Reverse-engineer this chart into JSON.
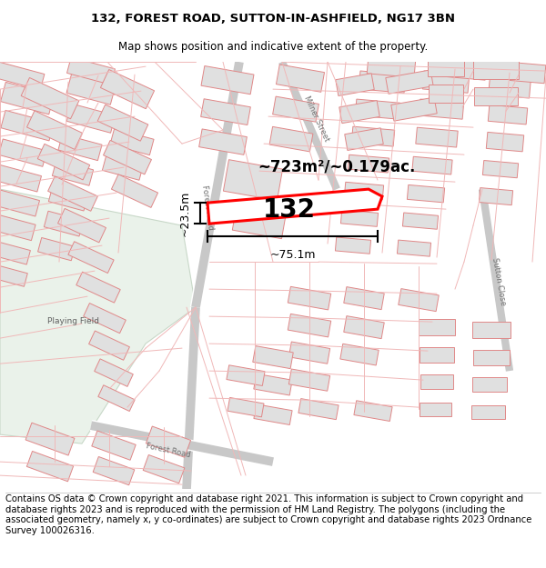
{
  "title": "132, FOREST ROAD, SUTTON-IN-ASHFIELD, NG17 3BN",
  "subtitle": "Map shows position and indicative extent of the property.",
  "area_text": "~723m²/~0.179ac.",
  "width_text": "~75.1m",
  "height_text": "~23.5m",
  "label_132": "132",
  "footer_text": "Contains OS data © Crown copyright and database right 2021. This information is subject to Crown copyright and database rights 2023 and is reproduced with the permission of HM Land Registry. The polygons (including the associated geometry, namely x, y co-ordinates) are subject to Crown copyright and database rights 2023 Ordnance Survey 100026316.",
  "map_bg": "#ffffff",
  "road_color": "#f0b8b8",
  "road_dark": "#b0b0b0",
  "highlight_color": "#ff0000",
  "building_fill": "#e0e0e0",
  "building_edge": "#e08888",
  "green_fill": "#e8f0e8",
  "title_fontsize": 9.5,
  "subtitle_fontsize": 8.5,
  "footer_fontsize": 7.2,
  "fig_width": 6.0,
  "fig_height": 6.25
}
